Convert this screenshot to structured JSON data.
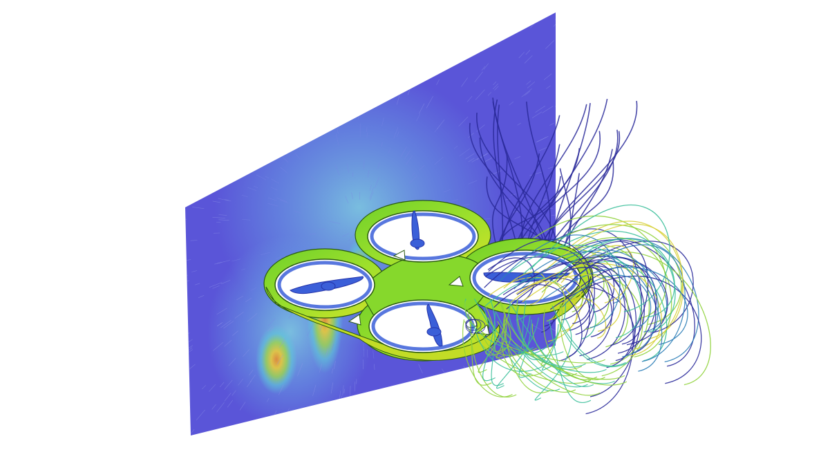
{
  "scene": {
    "background_color": "#ffffff",
    "subject": "quadcopter-drone",
    "colors": {
      "plane_base": "#5a55d8",
      "plane_light": "#7a86e6",
      "field_cyan": "#5fc7d8",
      "field_green": "#9fd64a",
      "field_yellow": "#e8c83a",
      "field_orange": "#e08a3a",
      "body_green": "#7fd62e",
      "body_yellow": "#c9e22a",
      "body_edge": "#2a5a10",
      "rotor_blue": "#3b5fd8",
      "rotor_dark": "#2332a8",
      "streamline_dark": "#2a2a9a",
      "streamline_mid": "#2f7fb8",
      "streamline_teal": "#3bbf9a",
      "streamline_green": "#8fd23a",
      "streamline_yellow": "#d7d03a"
    }
  }
}
